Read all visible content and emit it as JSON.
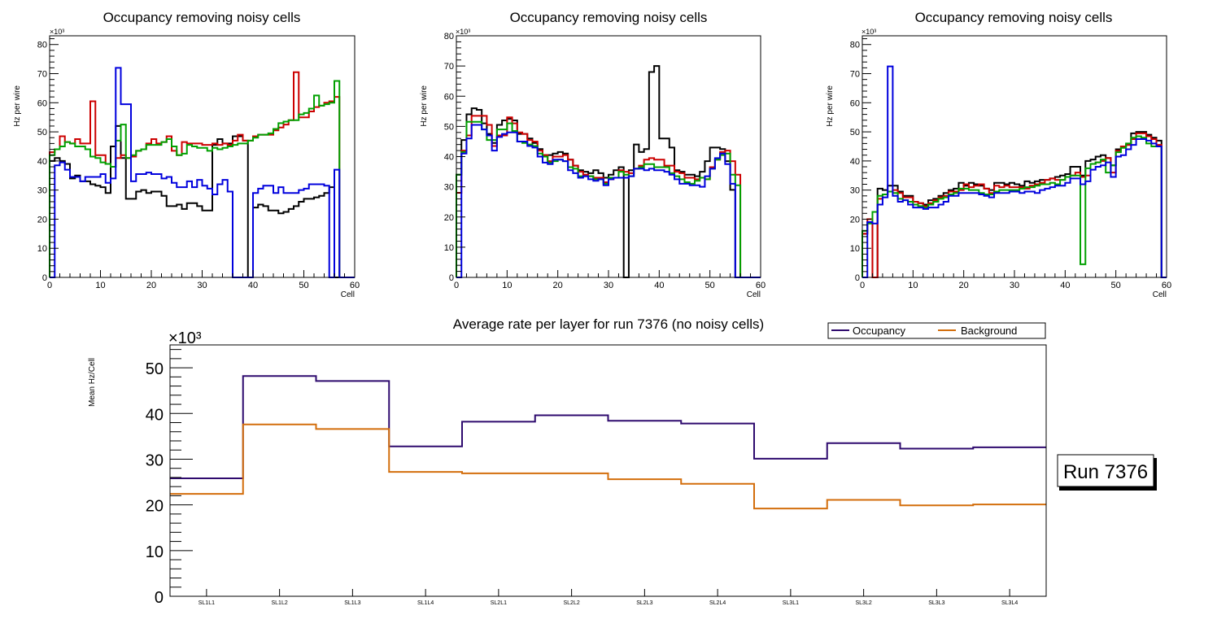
{
  "chart_data": [
    {
      "type": "histogram-step",
      "title": "Occupancy removing noisy cells",
      "xlabel": "Cell",
      "ylabel": "Hz per wire",
      "yscale_label": "×10³",
      "xlim": [
        0,
        60
      ],
      "ylim": [
        0,
        83
      ],
      "xticks": [
        "0",
        "10",
        "20",
        "30",
        "40",
        "50",
        "60"
      ],
      "yticks": [
        "0",
        "10",
        "20",
        "30",
        "40",
        "50",
        "60",
        "70",
        "80"
      ],
      "series": [
        {
          "name": "black",
          "color": "#000000",
          "values": [
            40,
            41,
            40,
            39,
            34,
            35,
            33,
            33,
            32,
            31.5,
            31,
            29,
            45,
            52,
            41,
            27,
            27,
            29.5,
            30,
            29,
            29.5,
            29.5,
            28,
            24.5,
            24.5,
            25,
            23.5,
            25.5,
            25.5,
            24.5,
            23,
            23,
            45.5,
            47.5,
            46,
            46,
            48.5,
            48.5,
            47,
            0,
            24,
            25,
            24.5,
            23,
            23,
            22,
            22.5,
            23.5,
            24.5,
            26,
            27,
            27,
            27.5,
            28,
            29,
            31,
            0,
            0,
            0,
            0
          ]
        },
        {
          "name": "red",
          "color": "#cc0000",
          "values": [
            43,
            44,
            48.5,
            46.5,
            46,
            47.5,
            46,
            46,
            60.5,
            42,
            42,
            39,
            38,
            41,
            42,
            41,
            41.5,
            43.5,
            44,
            46,
            47.5,
            46,
            46.5,
            48.5,
            43.5,
            42,
            46.5,
            46,
            46,
            46,
            45.5,
            45.5,
            46,
            45.5,
            46,
            45.5,
            47,
            49,
            47,
            47,
            48.5,
            49,
            49,
            49,
            50.5,
            51.5,
            52.5,
            54,
            70.5,
            55,
            55,
            57,
            58.5,
            59,
            60,
            60.5,
            62,
            0,
            0,
            0
          ]
        },
        {
          "name": "green",
          "color": "#00a000",
          "values": [
            42,
            44,
            45,
            46.5,
            46,
            45,
            45,
            44,
            41.5,
            41,
            39.5,
            39,
            38,
            47,
            52.5,
            41,
            42,
            43.5,
            44,
            45.5,
            45.5,
            45.5,
            46.5,
            47.5,
            45,
            42,
            42.5,
            45.5,
            45,
            44.5,
            44.5,
            43.5,
            44.5,
            44,
            44.5,
            45,
            45.5,
            46,
            46,
            47,
            48,
            49,
            49,
            49.5,
            51,
            53,
            53.5,
            54,
            54,
            56,
            56.5,
            58,
            62.5,
            59,
            59.5,
            60,
            67.5,
            0,
            0,
            0
          ]
        },
        {
          "name": "blue",
          "color": "#0000dd",
          "values": [
            0,
            38.5,
            39.5,
            37,
            34.5,
            34.5,
            33,
            34.5,
            34.5,
            34.5,
            35.5,
            32.5,
            34,
            72,
            59.5,
            59.5,
            33,
            35.5,
            35.5,
            36,
            35.5,
            35.5,
            34,
            34.5,
            32.5,
            31,
            31,
            33,
            31,
            33.5,
            31.5,
            30.5,
            28.5,
            32,
            33.5,
            29.5,
            0,
            0,
            0,
            0,
            29,
            30.5,
            31.5,
            31.5,
            29,
            31,
            29,
            29,
            29,
            30,
            30.5,
            32,
            32,
            32,
            31.5,
            0,
            37,
            0,
            0,
            0
          ]
        }
      ]
    },
    {
      "type": "histogram-step",
      "title": "Occupancy removing noisy cells",
      "xlabel": "Cell",
      "ylabel": "Hz per wire",
      "yscale_label": "×10³",
      "xlim": [
        0,
        60
      ],
      "ylim": [
        0,
        80
      ],
      "xticks": [
        "0",
        "10",
        "20",
        "30",
        "40",
        "50",
        "60"
      ],
      "yticks": [
        "0",
        "10",
        "20",
        "30",
        "40",
        "50",
        "60",
        "70",
        "80"
      ],
      "series": [
        {
          "name": "black",
          "color": "#000000",
          "values": [
            34,
            45.5,
            54,
            56,
            55.5,
            51,
            47.5,
            44.5,
            50.5,
            52,
            52.5,
            52,
            47.5,
            47.5,
            46,
            44.5,
            42.5,
            40.5,
            40.5,
            41,
            41.5,
            41,
            39,
            37,
            35.5,
            35,
            34.5,
            35.5,
            34.5,
            33,
            34,
            35.5,
            36.5,
            0,
            35.5,
            44,
            41.5,
            42.5,
            68,
            70,
            46,
            46,
            43,
            35.5,
            35,
            34,
            34,
            33.5,
            35,
            38.5,
            43,
            43,
            42.5,
            38.5,
            29,
            0,
            0,
            0,
            0,
            0
          ]
        },
        {
          "name": "red",
          "color": "#cc0000",
          "values": [
            28,
            42,
            47,
            53.5,
            53.5,
            53.5,
            50.5,
            43.5,
            47,
            47,
            53,
            51,
            48,
            47.5,
            45.5,
            45,
            42,
            40.5,
            38.5,
            40,
            40,
            40.5,
            39,
            37,
            35,
            34,
            33.5,
            33,
            33,
            31.5,
            32.5,
            33,
            35.5,
            35,
            34.5,
            36,
            37,
            39,
            39.5,
            39,
            39,
            37,
            37,
            35,
            34.5,
            33,
            33,
            32.5,
            33,
            32.5,
            36.5,
            39,
            41.5,
            42,
            38.5,
            34,
            0,
            0,
            0,
            0
          ]
        },
        {
          "name": "green",
          "color": "#00a000",
          "values": [
            34,
            41.5,
            51.5,
            51.5,
            51.5,
            49,
            45.5,
            45.5,
            49,
            49,
            51,
            48.5,
            45,
            44.5,
            44,
            43.5,
            41,
            40,
            38,
            38.5,
            39,
            38.5,
            36.5,
            36,
            33.5,
            33.5,
            33.5,
            32.5,
            32.5,
            31,
            33,
            33,
            35,
            34,
            33.5,
            36,
            36.5,
            37.5,
            37.5,
            36.5,
            36.5,
            36.5,
            34.5,
            33.5,
            32.5,
            31.5,
            31,
            32,
            33,
            32.5,
            36,
            39,
            40.5,
            41,
            34,
            30.5,
            0,
            0,
            0,
            0
          ]
        },
        {
          "name": "blue",
          "color": "#0000dd",
          "values": [
            0,
            41,
            46,
            50.5,
            50.5,
            49,
            47,
            42,
            46.5,
            47.5,
            48,
            48,
            45,
            45,
            43.5,
            43,
            40,
            38,
            37.5,
            39,
            39,
            38.5,
            35.5,
            34.5,
            33,
            33.5,
            32.5,
            32,
            32.5,
            30.5,
            32.5,
            33,
            33,
            33,
            33.5,
            36,
            36,
            35.5,
            36,
            35.5,
            35.5,
            35,
            34,
            32.5,
            31,
            31,
            30.5,
            30.5,
            30,
            33.5,
            36,
            39.5,
            41,
            37.5,
            31,
            0,
            0,
            0,
            0,
            0
          ]
        }
      ]
    },
    {
      "type": "histogram-step",
      "title": "Occupancy removing noisy cells",
      "xlabel": "Cell",
      "ylabel": "Hz per wire",
      "yscale_label": "×10³",
      "xlim": [
        0,
        60
      ],
      "ylim": [
        0,
        83
      ],
      "xticks": [
        "0",
        "10",
        "20",
        "30",
        "40",
        "50",
        "60"
      ],
      "yticks": [
        "0",
        "10",
        "20",
        "30",
        "40",
        "50",
        "60",
        "70",
        "80"
      ],
      "series": [
        {
          "name": "black",
          "color": "#000000",
          "values": [
            15,
            19,
            0,
            30.5,
            30,
            31.5,
            31.5,
            29.5,
            28,
            28,
            26,
            25.5,
            25,
            26.5,
            27,
            28,
            29,
            30,
            30.5,
            32.5,
            31.5,
            32.5,
            32,
            31.5,
            30.5,
            30,
            32.5,
            32.5,
            32,
            32.5,
            32,
            31.5,
            33,
            32.5,
            33,
            33.5,
            33.5,
            34,
            34.5,
            35,
            35.5,
            38,
            38,
            35,
            40,
            40.5,
            41.5,
            42,
            41,
            38.5,
            44,
            45,
            45.5,
            49.5,
            50,
            50,
            49,
            48,
            47,
            0
          ]
        },
        {
          "name": "red",
          "color": "#cc0000",
          "values": [
            15,
            20,
            0,
            27,
            28.5,
            29.5,
            30,
            29,
            27.5,
            27.5,
            26,
            25.5,
            24.5,
            25.5,
            26.5,
            27.5,
            28,
            29.5,
            29.5,
            30,
            32,
            31,
            31.5,
            32,
            30.5,
            29,
            31.5,
            31,
            31.5,
            31,
            31,
            31,
            30.5,
            31.5,
            32,
            32.5,
            33.5,
            34,
            33.5,
            33.5,
            34.5,
            35,
            36,
            34.5,
            35,
            39,
            39.5,
            40,
            41,
            36,
            43.5,
            45,
            45.5,
            47.5,
            49.5,
            49.5,
            48.5,
            47.5,
            45.5,
            0
          ]
        },
        {
          "name": "green",
          "color": "#00a000",
          "values": [
            16,
            18.5,
            22.5,
            28,
            28.5,
            29.5,
            29,
            27,
            26.5,
            26,
            25,
            24.5,
            24,
            25,
            26,
            27,
            27.5,
            28.5,
            29,
            30.5,
            30.5,
            30,
            30,
            29,
            28.5,
            28.5,
            29.5,
            30,
            30,
            30,
            30,
            30.5,
            31,
            31,
            31.5,
            32,
            32,
            32.5,
            32,
            33.5,
            34.5,
            35,
            35,
            4.5,
            37.5,
            39,
            39.5,
            40.5,
            36,
            38.5,
            43,
            44.5,
            46,
            48,
            48.5,
            48,
            46,
            45,
            45,
            0
          ]
        },
        {
          "name": "blue",
          "color": "#0000dd",
          "values": [
            0,
            19,
            18.5,
            25,
            27.5,
            72.5,
            28,
            26,
            26.5,
            25,
            24,
            24,
            23.5,
            24,
            24,
            25,
            26,
            28,
            28,
            29,
            29,
            29,
            29,
            28.5,
            28,
            27.5,
            29,
            29,
            29,
            29.5,
            29.5,
            29,
            29.5,
            29.5,
            29,
            30,
            30.5,
            31,
            31.5,
            31.5,
            32.5,
            34,
            34,
            32,
            33,
            37,
            38,
            38.5,
            39.5,
            34.5,
            41.5,
            42,
            44,
            45.5,
            47.5,
            47.5,
            47,
            46,
            45,
            0
          ]
        }
      ]
    },
    {
      "type": "line-step",
      "title": "Average rate per layer for run 7376 (no noisy cells)",
      "xlabel": "",
      "ylabel": "Mean Hz/Cell",
      "yscale_label": "×10³",
      "ylim": [
        0,
        55
      ],
      "yticks": [
        "0",
        "10",
        "20",
        "30",
        "40",
        "50"
      ],
      "categories": [
        "SL1L1",
        "SL1L2",
        "SL1L3",
        "SL1L4",
        "SL2L1",
        "SL2L2",
        "SL2L3",
        "SL2L4",
        "SL3L1",
        "SL3L2",
        "SL3L3",
        "SL3L4"
      ],
      "legend": {
        "placement": "top-right",
        "entries": [
          "Occupancy",
          "Background"
        ]
      },
      "series": [
        {
          "name": "Occupancy",
          "color": "#2e0a6e",
          "values": [
            25.8,
            48.2,
            47.1,
            32.8,
            38.2,
            39.6,
            38.4,
            37.8,
            30.1,
            33.5,
            32.3,
            32.6
          ]
        },
        {
          "name": "Background",
          "color": "#d36e0c",
          "values": [
            22.4,
            37.6,
            36.6,
            27.2,
            26.9,
            26.9,
            25.6,
            24.6,
            19.2,
            21.1,
            19.9,
            20.1
          ]
        }
      ],
      "annotation": "Run 7376"
    }
  ]
}
